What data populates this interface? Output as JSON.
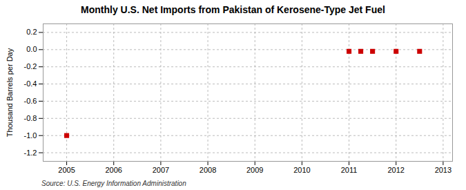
{
  "chart_data": {
    "type": "scatter",
    "title": "Monthly U.S. Net Imports from Pakistan of Kerosene-Type Jet Fuel",
    "ylabel": "Thousand Barrels per Day",
    "annotation": "Source: U.S. Energy Information Administration",
    "x": [
      2005.0,
      2011.0,
      2011.25,
      2011.5,
      2012.0,
      2012.5
    ],
    "values": [
      -1.0,
      -0.02,
      -0.02,
      -0.02,
      -0.02,
      -0.02
    ],
    "color": "#cc0000",
    "marker": "square",
    "grid": true,
    "xlim": [
      2004.5,
      2013.2
    ],
    "xticks": [
      2005,
      2006,
      2007,
      2008,
      2009,
      2010,
      2011,
      2012,
      2013
    ],
    "ylim": [
      -1.3,
      0.3
    ],
    "yticks": [
      0.2,
      {
        "value": 0,
        "label": "0.0"
      },
      -0.2,
      -0.4,
      -0.6,
      -0.8,
      {
        "value": -1,
        "label": "-1.0"
      },
      -1.2
    ]
  }
}
